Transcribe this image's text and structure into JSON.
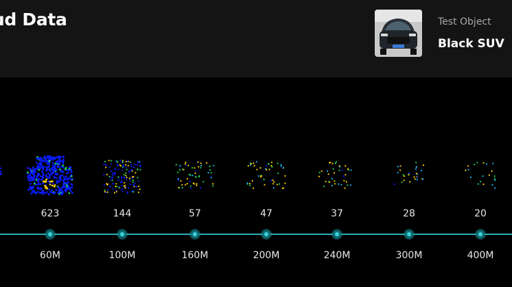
{
  "header": {
    "title": "oud Data",
    "object_label": "Test Object",
    "object_name": "Black SUV"
  },
  "clouds": [
    {
      "count": "623",
      "distance": "60M",
      "points": 623
    },
    {
      "count": "144",
      "distance": "100M",
      "points": 144
    },
    {
      "count": "57",
      "distance": "160M",
      "points": 57
    },
    {
      "count": "47",
      "distance": "200M",
      "points": 47
    },
    {
      "count": "37",
      "distance": "240M",
      "points": 37
    },
    {
      "count": "28",
      "distance": "300M",
      "points": 28
    },
    {
      "count": "20",
      "distance": "400M",
      "points": 20
    }
  ],
  "colors": {
    "axis": "#2ab0b8",
    "near_points": "#0a1bff",
    "hot_points": "#ffd400",
    "mid_points": "#1fd65a",
    "far_points": "#17b7ff"
  }
}
